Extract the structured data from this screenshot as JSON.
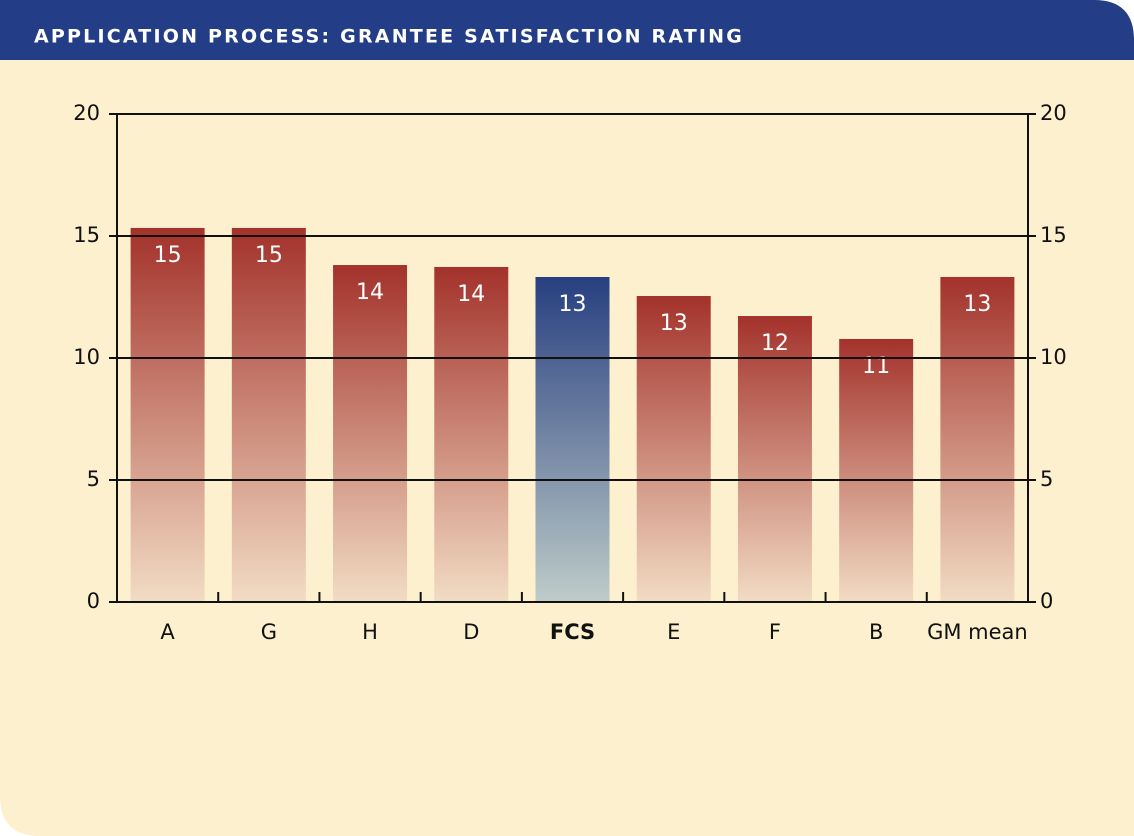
{
  "chart_data": {
    "type": "bar",
    "title": "APPLICATION PROCESS: GRANTEE SATISFACTION RATING",
    "categories": [
      "A",
      "G",
      "H",
      "D",
      "FCS",
      "E",
      "F",
      "B",
      "GM mean"
    ],
    "values": [
      15.33,
      15.33,
      13.81,
      13.73,
      13.32,
      12.54,
      11.72,
      10.78,
      13.32
    ],
    "value_labels": [
      "15",
      "15",
      "14",
      "14",
      "13",
      "13",
      "12",
      "11",
      "13"
    ],
    "colors": [
      "#a3322b",
      "#a3322b",
      "#a3322b",
      "#a3322b",
      "#273f80",
      "#a3322b",
      "#a3322b",
      "#a3322b",
      "#a3322b"
    ],
    "ylim": [
      0,
      20
    ],
    "yticks": [
      0,
      5,
      10,
      15,
      20
    ],
    "grid": true
  }
}
